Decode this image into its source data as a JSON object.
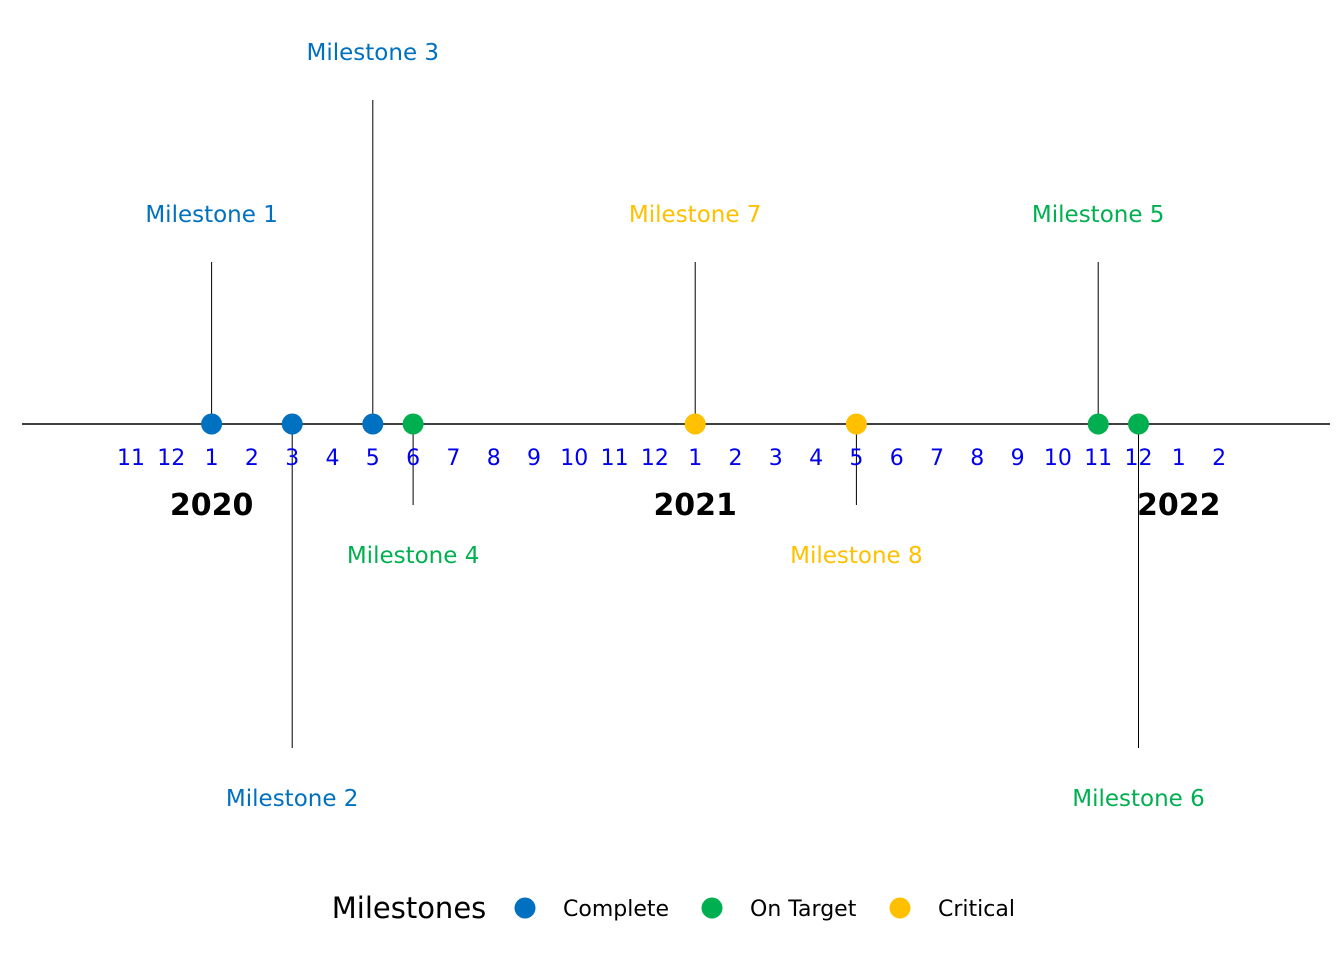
{
  "chart_data": {
    "type": "timeline",
    "x_range": [
      "2019-11",
      "2022-02"
    ],
    "month_ticks": [
      "11",
      "12",
      "1",
      "2",
      "3",
      "4",
      "5",
      "6",
      "7",
      "8",
      "9",
      "10",
      "11",
      "12",
      "1",
      "2",
      "3",
      "4",
      "5",
      "6",
      "7",
      "8",
      "9",
      "10",
      "11",
      "12",
      "1",
      "2"
    ],
    "year_labels": [
      {
        "label": "2020",
        "date": "2020-01"
      },
      {
        "label": "2021",
        "date": "2021-01"
      },
      {
        "label": "2022",
        "date": "2022-01"
      }
    ],
    "milestones": [
      {
        "label": "Milestone 1",
        "date": "2020-01",
        "status": "Complete",
        "level": 2
      },
      {
        "label": "Milestone 2",
        "date": "2020-03",
        "status": "Complete",
        "level": -4
      },
      {
        "label": "Milestone 3",
        "date": "2020-05",
        "status": "Complete",
        "level": 4
      },
      {
        "label": "Milestone 4",
        "date": "2020-06",
        "status": "On Target",
        "level": -1
      },
      {
        "label": "Milestone 7",
        "date": "2021-01",
        "status": "Critical",
        "level": 2
      },
      {
        "label": "Milestone 8",
        "date": "2021-05",
        "status": "Critical",
        "level": -1
      },
      {
        "label": "Milestone 5",
        "date": "2021-11",
        "status": "On Target",
        "level": 2
      },
      {
        "label": "Milestone 6",
        "date": "2021-12",
        "status": "On Target",
        "level": -4
      }
    ],
    "legend": {
      "title": "Milestones",
      "placement": "bottom",
      "entries": [
        {
          "status": "Complete",
          "label": "Complete",
          "color": "#0070C0"
        },
        {
          "status": "On Target",
          "label": "On Target",
          "color": "#00B050"
        },
        {
          "status": "Critical",
          "label": "Critical",
          "color": "#FFC000"
        }
      ]
    }
  }
}
